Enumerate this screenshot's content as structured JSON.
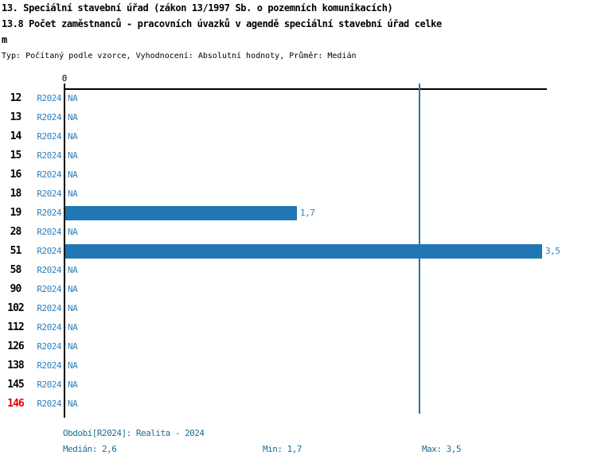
{
  "header": {
    "title_line1": "13. Speciální stavební úřad (zákon 13/1997 Sb. o pozemních komunikacích)",
    "title_line2": "13.8 Počet zaměstnanců - pracovních úvazků v agendě speciální stavební úřad celke",
    "title_line3": "m",
    "meta": "Typ: Počítaný podle vzorce, Vyhodnocení: Absolutní hodnoty, Průměr: Medián"
  },
  "chart_data": {
    "type": "bar",
    "orientation": "horizontal",
    "title": "13. Speciální stavební úřad (zákon 13/1997 Sb. o pozemních komunikacích)",
    "subtitle": "13.8 Počet zaměstnanců - pracovních úvazků v agendě speciální stavební úřad celkem",
    "meta": "Typ: Počítaný podle vzorce, Vyhodnocení: Absolutní hodnoty, Průměr: Medián",
    "categories": [
      "12",
      "13",
      "14",
      "15",
      "16",
      "18",
      "19",
      "28",
      "51",
      "58",
      "90",
      "102",
      "112",
      "126",
      "138",
      "145",
      "146"
    ],
    "series": [
      {
        "name": "R2024",
        "values": [
          null,
          null,
          null,
          null,
          null,
          null,
          1.7,
          null,
          3.5,
          null,
          null,
          null,
          null,
          null,
          null,
          null,
          null
        ]
      }
    ],
    "value_display": [
      "NA",
      "NA",
      "NA",
      "NA",
      "NA",
      "NA",
      "1,7",
      "NA",
      "3,5",
      "NA",
      "NA",
      "NA",
      "NA",
      "NA",
      "NA",
      "NA",
      "NA"
    ],
    "highlight_category": "146",
    "x_axis_ticks": [
      "0"
    ],
    "xlim": [
      0,
      3.9
    ],
    "median": 2.6,
    "min": 1.7,
    "max": 3.5,
    "median_line": true,
    "grid": false,
    "legend_position": "bottom"
  },
  "axis": {
    "zero_label": "0"
  },
  "footer": {
    "period_line": "Období[R2024]: Realita - 2024",
    "median_label": "Medián: 2,6",
    "min_label": "Min: 1,7",
    "max_label": "Max: 3,5"
  },
  "colors": {
    "bar": "#2176B4",
    "label_blue": "#2E81BE",
    "legend_text": "#1E6E91",
    "highlight_red": "#E00000",
    "axis": "#000000"
  }
}
